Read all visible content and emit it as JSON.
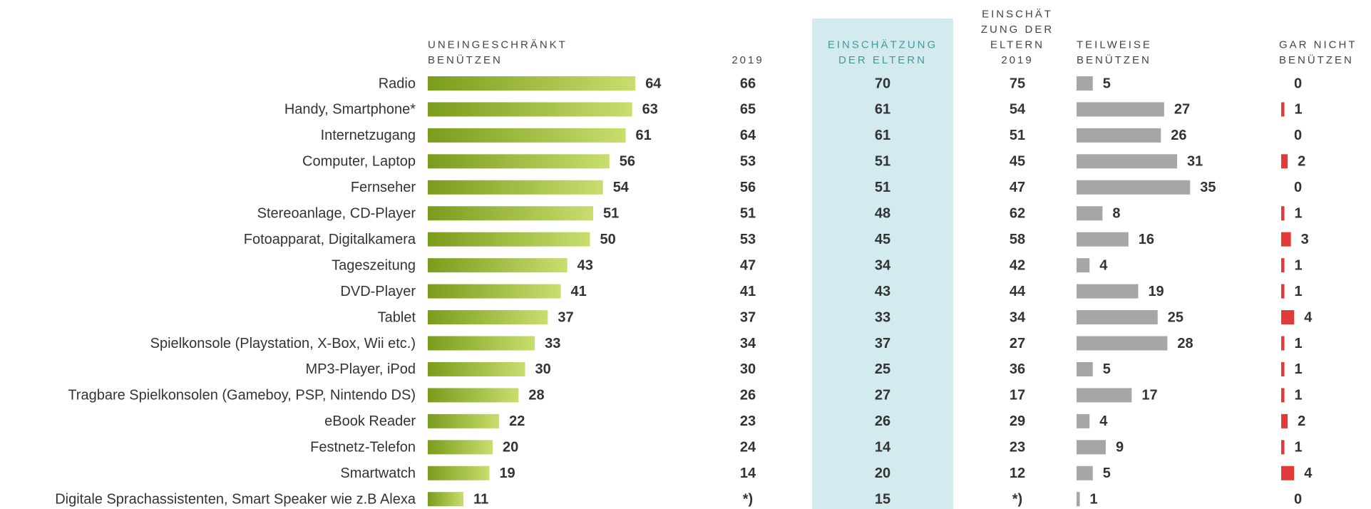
{
  "chart_data": {
    "type": "table-bar",
    "categories": [
      "Radio",
      "Handy, Smartphone*",
      "Internetzugang",
      "Computer, Laptop",
      "Fernseher",
      "Stereoanlage, CD-Player",
      "Fotoapparat, Digitalkamera",
      "Tageszeitung",
      "DVD-Player",
      "Tablet",
      "Spielkonsole (Playstation, X-Box, Wii etc.)",
      "MP3-Player, iPod",
      "Tragbare Spielkonsolen (Gameboy, PSP, Nintendo DS)",
      "eBook Reader",
      "Festnetz-Telefon",
      "Smartwatch",
      "Digitale Sprachassistenten, Smart Speaker wie z.B Alexa"
    ],
    "columns": [
      {
        "name_lines": [
          "UNEINGESCHRÄNKT",
          "BENÜTZEN"
        ],
        "bar": true,
        "color": [
          "#7a9c1c",
          "#c8de6e"
        ],
        "values": [
          64,
          63,
          61,
          56,
          54,
          51,
          50,
          43,
          41,
          37,
          33,
          30,
          28,
          22,
          20,
          19,
          11
        ]
      },
      {
        "name_lines": [
          "2019"
        ],
        "bar": false,
        "values": [
          66,
          65,
          64,
          53,
          56,
          51,
          53,
          47,
          41,
          37,
          34,
          30,
          26,
          23,
          24,
          14,
          "*)"
        ]
      },
      {
        "name_lines": [
          "EINSCHÄTZUNG",
          "DER ELTERN"
        ],
        "bar": false,
        "highlight": "#d3ebee",
        "values": [
          70,
          61,
          61,
          51,
          51,
          48,
          45,
          34,
          43,
          33,
          37,
          25,
          27,
          26,
          14,
          20,
          15
        ]
      },
      {
        "name_lines": [
          "EINSCHÄT",
          "ZUNG DER",
          "ELTERN",
          "2019"
        ],
        "bar": false,
        "values": [
          75,
          54,
          51,
          45,
          47,
          62,
          58,
          42,
          44,
          34,
          27,
          36,
          17,
          29,
          23,
          12,
          "*)"
        ]
      },
      {
        "name_lines": [
          "TEILWEISE",
          "BENÜTZEN"
        ],
        "bar": true,
        "color": "#a6a6a6",
        "values": [
          5,
          27,
          26,
          31,
          35,
          8,
          16,
          4,
          19,
          25,
          28,
          5,
          17,
          4,
          9,
          5,
          1
        ]
      },
      {
        "name_lines": [
          "GAR NICHT",
          "BENÜTZEN"
        ],
        "bar": true,
        "color": "#e03a3a",
        "values": [
          0,
          1,
          0,
          2,
          0,
          1,
          3,
          1,
          1,
          4,
          1,
          1,
          1,
          2,
          1,
          4,
          0
        ]
      }
    ]
  }
}
